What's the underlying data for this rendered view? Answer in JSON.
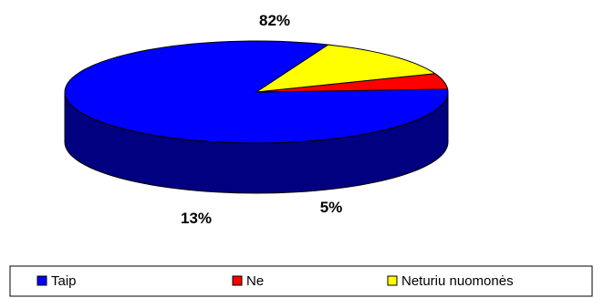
{
  "chart_data": {
    "type": "pie",
    "style": "3d",
    "legend_position": "bottom",
    "categories": [
      "Taip",
      "Ne",
      "Neturiu nuomonės"
    ],
    "values": [
      82,
      5,
      13
    ],
    "data_labels": [
      "82%",
      "5%",
      "13%"
    ],
    "colors": {
      "top": [
        "#0000FF",
        "#FF0000",
        "#FFFF00"
      ],
      "side": [
        "#000080",
        "#800000",
        "#808000"
      ]
    }
  }
}
